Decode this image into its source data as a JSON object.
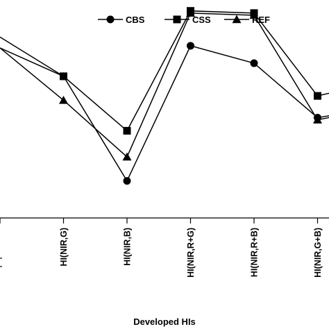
{
  "chart_data": {
    "type": "line",
    "title": "",
    "xlabel": "Developed HIs",
    "ylabel": "",
    "categories": [
      "",
      "HI(NIR,G)",
      "HI(NIR,B)",
      "HI(NIR,R+G)",
      "HI(NIR,R+B)",
      "HI(NIR,G+B)"
    ],
    "ylim": [
      0,
      100
    ],
    "grid": false,
    "legend_position": "top-right",
    "series": [
      {
        "name": "CBS",
        "marker": "circle",
        "values": [
          83,
          65,
          17,
          79,
          71,
          46
        ]
      },
      {
        "name": "CSS",
        "marker": "square",
        "values": [
          78,
          65,
          40,
          95,
          94,
          56
        ]
      },
      {
        "name": "REF",
        "marker": "triangle",
        "values": [
          78,
          54,
          28,
          94,
          93,
          45
        ]
      }
    ],
    "edge_points": [
      {
        "series": "CBS",
        "category_index": 6.2,
        "value": 52
      },
      {
        "series": "CSS",
        "category_index": 6.2,
        "value": 64
      },
      {
        "series": "REF",
        "category_index": 6.2,
        "value": 52
      }
    ]
  },
  "colors": {
    "line": "#000000",
    "marker": "#000000",
    "background": "#ffffff"
  }
}
